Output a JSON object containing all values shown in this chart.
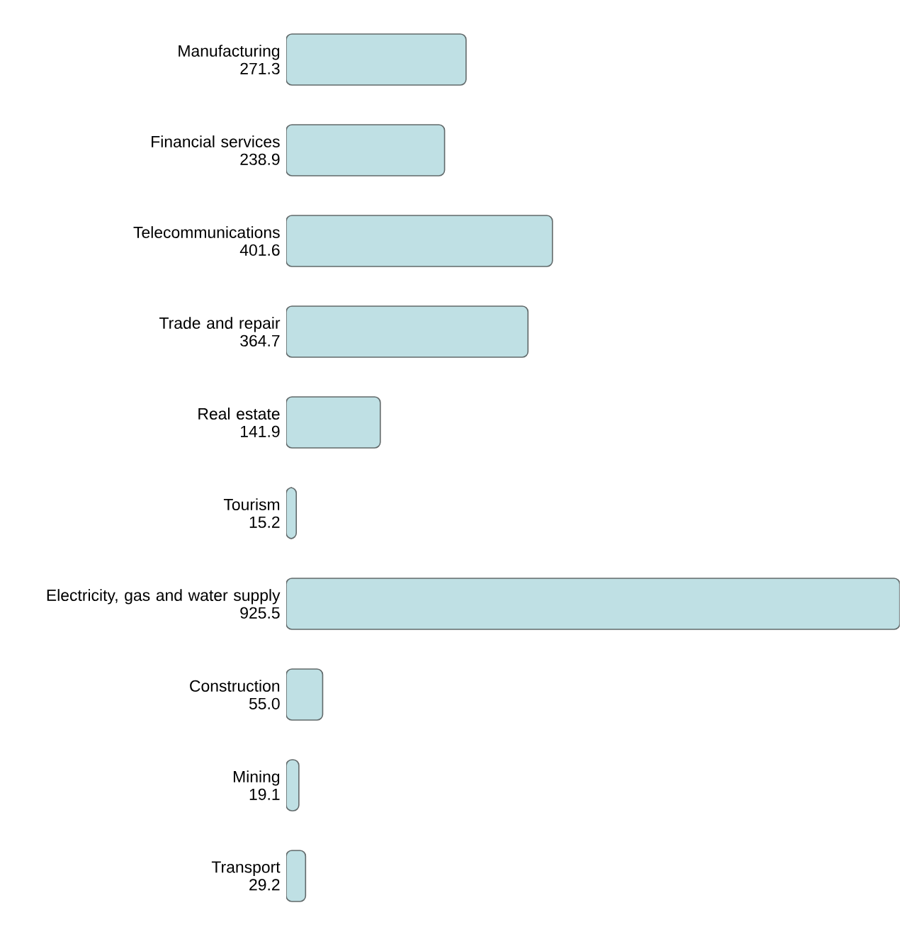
{
  "chart_data": {
    "type": "bar",
    "orientation": "horizontal",
    "color": "#bfe0e4",
    "categories": [
      "Manufacturing",
      "Financial services",
      "Telecommunications",
      "Trade and repair",
      "Real estate",
      "Tourism",
      "Electricity, gas and water supply",
      "Construction",
      "Mining",
      "Transport"
    ],
    "values": [
      271.3,
      238.9,
      401.6,
      364.7,
      141.9,
      15.2,
      925.5,
      55.0,
      19.1,
      29.2
    ],
    "value_labels": [
      "271.3",
      "238.9",
      "401.6",
      "364.7",
      "141.9",
      "15.2",
      "925.5",
      "55.0",
      "19.1",
      "29.2"
    ]
  }
}
